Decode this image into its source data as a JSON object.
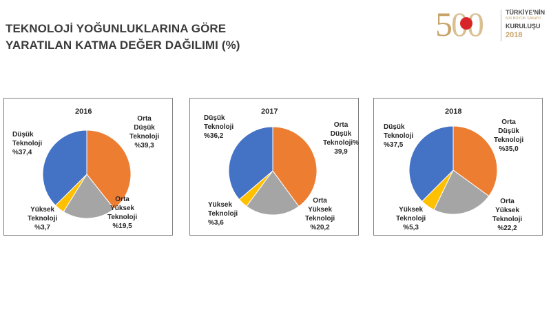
{
  "title": {
    "line1": "TEKNOLOJİ YOĞUNLUKLARINA GÖRE",
    "line2": "YARATILAN KATMA DEĞER DAĞILIMI (%)"
  },
  "logo": {
    "text_line1": "TÜRKİYE'NİN",
    "text_line2": "500 BÜYÜK SANAYİ",
    "text_line3": "KURULUŞU",
    "year": "2018"
  },
  "colors": {
    "orange": "#ED7D31",
    "gray": "#A5A5A5",
    "yellow": "#FFC000",
    "blue": "#4472C4"
  },
  "chart_data": [
    {
      "type": "pie",
      "title": "2016",
      "slices": [
        {
          "label_lines": [
            "Orta",
            "Düşük",
            "Teknoloji",
            "%39,3"
          ],
          "value": 39.3,
          "color": "#ED7D31"
        },
        {
          "label_lines": [
            "Orta",
            "Yüksek",
            "Teknoloji",
            "%19,5"
          ],
          "value": 19.5,
          "color": "#A5A5A5"
        },
        {
          "label_lines": [
            "Yüksek",
            "Teknoloji",
            "%3,7"
          ],
          "value": 3.7,
          "color": "#FFC000"
        },
        {
          "label_lines": [
            "Düşük",
            "Teknoloji",
            "%37,4"
          ],
          "value": 37.4,
          "color": "#4472C4"
        }
      ]
    },
    {
      "type": "pie",
      "title": "2017",
      "slices": [
        {
          "label_lines": [
            "Orta Düşük",
            "Teknoloji%",
            "39,9"
          ],
          "value": 39.9,
          "color": "#ED7D31"
        },
        {
          "label_lines": [
            "Orta",
            "Yüksek",
            "Teknoloji",
            "%20,2"
          ],
          "value": 20.2,
          "color": "#A5A5A5"
        },
        {
          "label_lines": [
            "Yüksek",
            "Teknoloji",
            "%3,6"
          ],
          "value": 3.6,
          "color": "#FFC000"
        },
        {
          "label_lines": [
            "Düşük",
            "Teknoloji",
            "%36,2"
          ],
          "value": 36.2,
          "color": "#4472C4"
        }
      ]
    },
    {
      "type": "pie",
      "title": "2018",
      "slices": [
        {
          "label_lines": [
            "Orta",
            "Düşük",
            "Teknoloji",
            "%35,0"
          ],
          "value": 35.0,
          "color": "#ED7D31"
        },
        {
          "label_lines": [
            "Orta",
            "Yüksek",
            "Teknoloji",
            "%22,2"
          ],
          "value": 22.2,
          "color": "#A5A5A5"
        },
        {
          "label_lines": [
            "Yüksek",
            "Teknoloji",
            "%5,3"
          ],
          "value": 5.3,
          "color": "#FFC000"
        },
        {
          "label_lines": [
            "Düşük",
            "Teknoloji",
            "%37,5"
          ],
          "value": 37.5,
          "color": "#4472C4"
        }
      ]
    }
  ]
}
